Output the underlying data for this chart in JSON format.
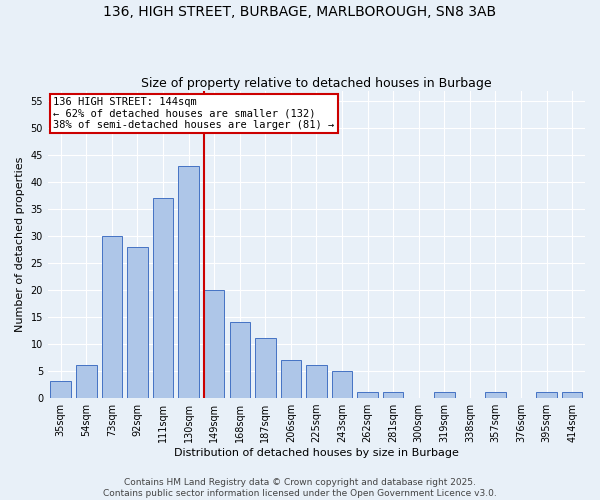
{
  "title_line1": "136, HIGH STREET, BURBAGE, MARLBOROUGH, SN8 3AB",
  "title_line2": "Size of property relative to detached houses in Burbage",
  "xlabel": "Distribution of detached houses by size in Burbage",
  "ylabel": "Number of detached properties",
  "categories": [
    "35sqm",
    "54sqm",
    "73sqm",
    "92sqm",
    "111sqm",
    "130sqm",
    "149sqm",
    "168sqm",
    "187sqm",
    "206sqm",
    "225sqm",
    "243sqm",
    "262sqm",
    "281sqm",
    "300sqm",
    "319sqm",
    "338sqm",
    "357sqm",
    "376sqm",
    "395sqm",
    "414sqm"
  ],
  "values": [
    3,
    6,
    30,
    28,
    37,
    43,
    20,
    14,
    11,
    7,
    6,
    5,
    1,
    1,
    0,
    1,
    0,
    1,
    0,
    1,
    1
  ],
  "bar_color": "#aec6e8",
  "bar_edge_color": "#4472c4",
  "background_color": "#e8f0f8",
  "grid_color": "#ffffff",
  "marker_bin_index": 6,
  "marker_color": "#cc0000",
  "annotation_text": "136 HIGH STREET: 144sqm\n← 62% of detached houses are smaller (132)\n38% of semi-detached houses are larger (81) →",
  "annotation_box_color": "#ffffff",
  "annotation_box_edge_color": "#cc0000",
  "ylim": [
    0,
    57
  ],
  "yticks": [
    0,
    5,
    10,
    15,
    20,
    25,
    30,
    35,
    40,
    45,
    50,
    55
  ],
  "footer_text": "Contains HM Land Registry data © Crown copyright and database right 2025.\nContains public sector information licensed under the Open Government Licence v3.0.",
  "title_fontsize": 10,
  "subtitle_fontsize": 9,
  "axis_label_fontsize": 8,
  "tick_fontsize": 7,
  "annotation_fontsize": 7.5,
  "footer_fontsize": 6.5
}
